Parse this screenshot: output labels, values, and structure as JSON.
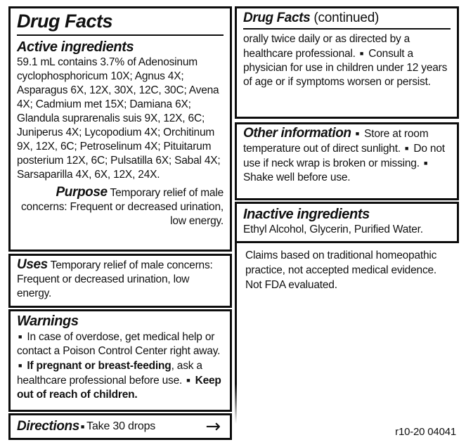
{
  "label": {
    "ink": "#111111",
    "bg": "#ffffff",
    "left": {
      "main_panel": {
        "title": "Drug Facts",
        "active": {
          "heading": "Active ingredients",
          "body": "59.1 mL contains 3.7% of Adenosinum cyclophosphoricum 10X; Agnus 4X; Asparagus 6X, 12X, 30X, 12C, 30C; Avena 4X; Cadmium met 15X; Damiana 6X; Glandula suprarenalis suis 9X, 12X, 6C; Juniperus 4X; Lycopodium 4X; Orchitinum 9X, 12X, 6C; Petroselinum 4X; Pituitarum posterium 12X, 6C; Pulsatilla 6X; Sabal 4X; Sarsaparilla 4X, 6X, 12X, 24X."
        },
        "purpose": {
          "heading": "Purpose",
          "body": " Temporary relief of male concerns: Frequent or decreased urination, low energy."
        }
      },
      "uses_panel": {
        "heading": "Uses",
        "body": " Temporary relief of male concerns: Frequent or decreased urination, low energy."
      },
      "warnings_panel": {
        "heading": "Warnings",
        "runs": [
          {
            "s": "bullet",
            "t": "■"
          },
          {
            "s": "r",
            "t": " In case of overdose, get medical help or contact a Poison Control Center right away. "
          },
          {
            "s": "bullet",
            "t": "■"
          },
          {
            "s": "b",
            "t": " If pregnant or breast-feeding"
          },
          {
            "s": "r",
            "t": ", ask a healthcare professional before use. "
          },
          {
            "s": "bullet",
            "t": "■"
          },
          {
            "s": "b",
            "t": " Keep out of reach of children."
          }
        ]
      },
      "directions_panel": {
        "heading": "Directions",
        "bullet": "■",
        "text": "Take 30 drops",
        "arrow": "→"
      }
    },
    "right": {
      "continued_panel": {
        "title": "Drug Facts",
        "title_suffix": " (continued)",
        "runs": [
          {
            "s": "r",
            "t": "orally twice daily or as directed by a healthcare professional. "
          },
          {
            "s": "bullet",
            "t": "■"
          },
          {
            "s": "r",
            "t": " Consult a physician for use in children under 12 years of age or if symptoms worsen or persist."
          }
        ]
      },
      "other_panel": {
        "heading": "Other information",
        "runs": [
          {
            "s": "bullet",
            "t": "■"
          },
          {
            "s": "r",
            "t": " Store at room temperature out of direct sunlight. "
          },
          {
            "s": "bullet",
            "t": "■"
          },
          {
            "s": "r",
            "t": " Do not use if neck wrap is broken or missing. "
          },
          {
            "s": "bullet",
            "t": "■"
          },
          {
            "s": "r",
            "t": " Shake well before use."
          }
        ]
      },
      "inactive_panel": {
        "heading": "Inactive ingredients",
        "body": "Ethyl Alcohol, Glycerin, Purified Water."
      },
      "claims_note": "Claims based on traditional homeopathic practice, not accepted medical evidence. Not FDA evaluated.",
      "revision_code": "r10-20 04041"
    }
  }
}
